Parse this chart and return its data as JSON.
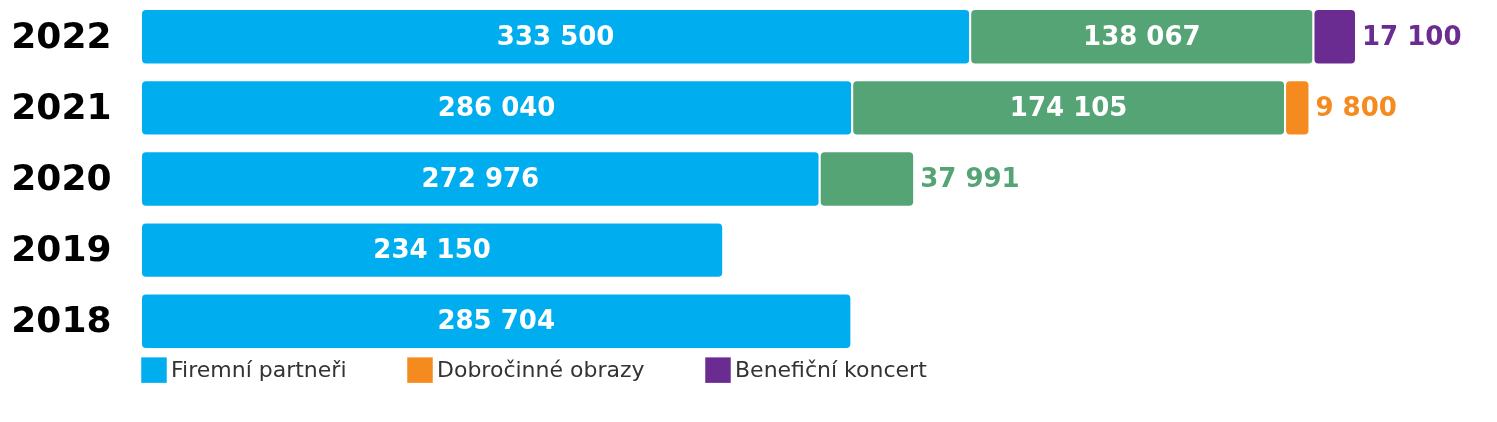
{
  "chart_data": {
    "type": "bar",
    "orientation": "horizontal",
    "stacked": true,
    "data_labels": true,
    "categories": [
      "2022",
      "2021",
      "2020",
      "2019",
      "2018"
    ],
    "series": [
      {
        "name": "Firemní partneři",
        "color": "#00aeef",
        "values": [
          333500,
          286040,
          272976,
          234150,
          285704
        ]
      },
      {
        "color": "#55a475",
        "values": [
          138067,
          174105,
          37991,
          null,
          null
        ]
      },
      {
        "name": "Dobročinné obrazy",
        "color": "#f58a1f",
        "values": [
          null,
          9800,
          null,
          null,
          null
        ]
      },
      {
        "name": "Benefiční koncert",
        "color": "#6b2c91",
        "values": [
          17100,
          null,
          null,
          null,
          null
        ]
      }
    ],
    "legend": "bottom"
  }
}
